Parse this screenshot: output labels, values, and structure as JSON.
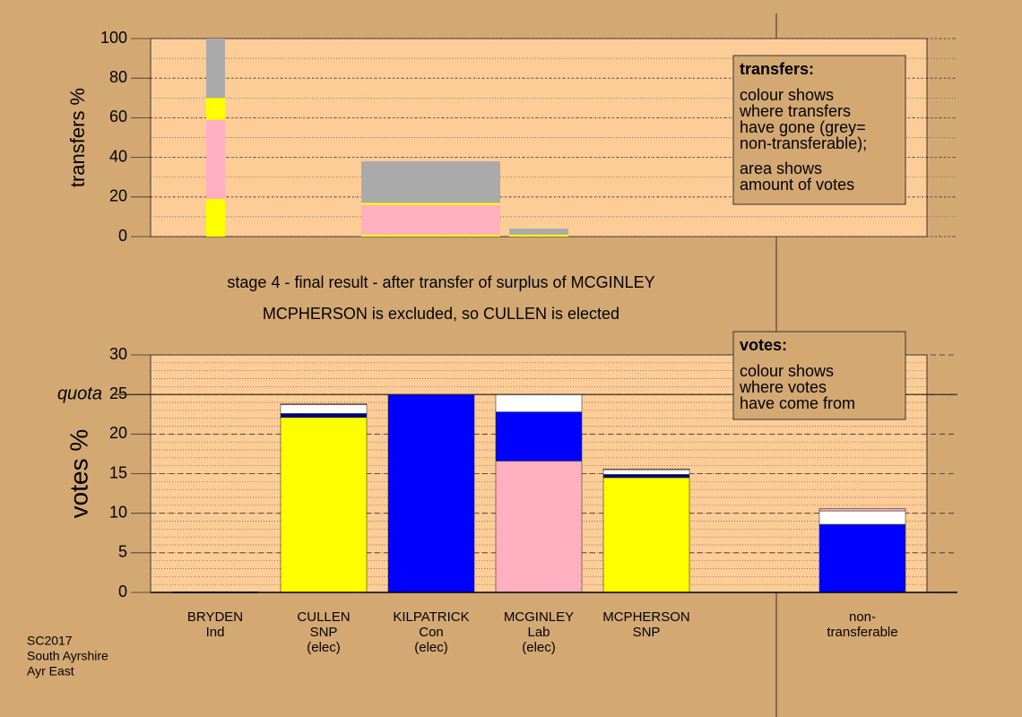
{
  "chart_data": [
    {
      "type": "stacked-bar",
      "ylabel": "transfers %",
      "ylim": [
        0,
        100
      ],
      "yticks": [
        0,
        20,
        40,
        60,
        80,
        100
      ],
      "bars": [
        {
          "segments": [
            {
              "color": "#ffff00",
              "value": 19
            },
            {
              "color": "#ffb0c0",
              "value": 40
            },
            {
              "color": "#ffff00",
              "value": 11
            },
            {
              "color": "#aaaaaa",
              "value": 30
            }
          ]
        },
        {
          "segments": [
            {
              "color": "#ffff00",
              "value": 1
            },
            {
              "color": "#ffb0c0",
              "value": 15
            },
            {
              "color": "#ffff00",
              "value": 1
            },
            {
              "color": "#aaaaaa",
              "value": 21
            }
          ]
        },
        {
          "segments": [
            {
              "color": "#ffff00",
              "value": 1
            },
            {
              "color": "#aaaaaa",
              "value": 3
            }
          ]
        }
      ],
      "legend": {
        "title": "transfers:",
        "lines": [
          "colour shows",
          "where transfers",
          "have gone (grey=",
          "non-transferable);",
          "area shows",
          "amount of votes"
        ]
      }
    },
    {
      "type": "stacked-bar",
      "ylabel": "votes %",
      "ylim": [
        0,
        30
      ],
      "yticks": [
        0,
        5,
        10,
        15,
        20,
        25,
        30
      ],
      "quota": 25,
      "quota_label": "quota",
      "categories": [
        [
          "BRYDEN",
          "Ind"
        ],
        [
          "CULLEN",
          "SNP",
          "(elec)"
        ],
        [
          "KILPATRICK",
          "Con",
          "(elec)"
        ],
        [
          "MCGINLEY",
          "Lab",
          "(elec)"
        ],
        [
          "MCPHERSON",
          "SNP"
        ],
        [
          "non-",
          "transferable"
        ]
      ],
      "bars": [
        {
          "segments": [
            {
              "color": "#000080",
              "value": 0
            }
          ]
        },
        {
          "segments": [
            {
              "color": "#ffff00",
              "value": 22.1
            },
            {
              "color": "#000080",
              "value": 0.5
            },
            {
              "color": "#ffffff",
              "value": 1.1
            },
            {
              "color": "#ffb0c0",
              "value": 0.1
            }
          ]
        },
        {
          "segments": [
            {
              "color": "#0000ff",
              "value": 25
            }
          ]
        },
        {
          "segments": [
            {
              "color": "#ffb0c0",
              "value": 16.6
            },
            {
              "color": "#0000ff",
              "value": 6.2
            },
            {
              "color": "#ffffff",
              "value": 2.2
            }
          ]
        },
        {
          "segments": [
            {
              "color": "#ffff00",
              "value": 14.5
            },
            {
              "color": "#000080",
              "value": 0.4
            },
            {
              "color": "#ffffff",
              "value": 0.6
            },
            {
              "color": "#ffb0c0",
              "value": 0.1
            }
          ]
        },
        {
          "segments": [
            {
              "color": "#0000ff",
              "value": 8.6
            },
            {
              "color": "#ffffff",
              "value": 1.7
            },
            {
              "color": "#ffb0c0",
              "value": 0.3
            }
          ]
        }
      ],
      "legend": {
        "title": "votes:",
        "lines": [
          "colour shows",
          "where votes",
          "have come from"
        ]
      }
    }
  ],
  "annotations": [
    "stage 4 - final result - after transfer of surplus of MCGINLEY",
    "MCPHERSON is excluded, so CULLEN is elected"
  ],
  "footer": [
    "SC2017",
    "South Ayrshire",
    "Ayr East"
  ]
}
